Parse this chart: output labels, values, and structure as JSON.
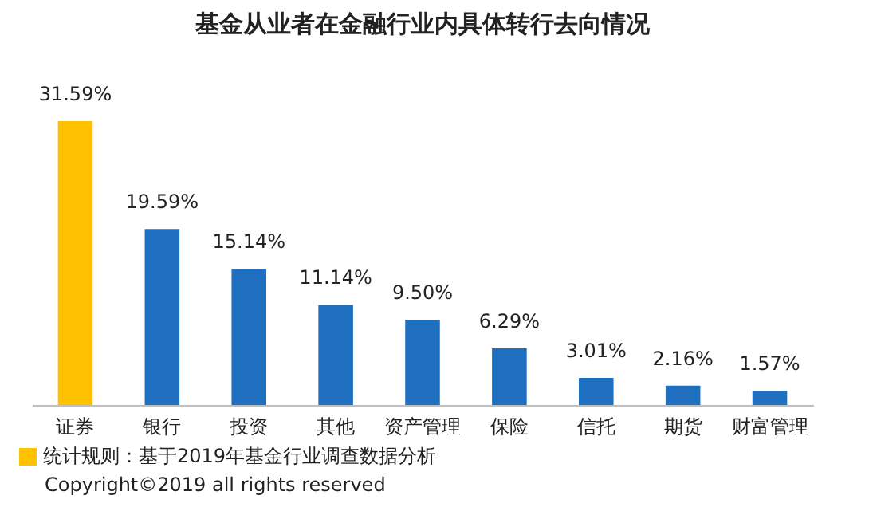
{
  "chart_data": {
    "type": "bar",
    "title": "基金从业者在金融行业内具体转行去向情况",
    "categories": [
      "证券",
      "银行",
      "投资",
      "其他",
      "资产管理",
      "保险",
      "信托",
      "期货",
      "财富管理"
    ],
    "values": [
      31.59,
      19.59,
      15.14,
      11.14,
      9.5,
      6.29,
      3.01,
      2.16,
      1.57
    ],
    "value_labels": [
      "31.59%",
      "19.59%",
      "15.14%",
      "11.14%",
      "9.50%",
      "6.29%",
      "3.01%",
      "2.16%",
      "1.57%"
    ],
    "colors": [
      "#ffc000",
      "#1f6fc0",
      "#1f6fc0",
      "#1f6fc0",
      "#1f6fc0",
      "#1f6fc0",
      "#1f6fc0",
      "#1f6fc0",
      "#1f6fc0"
    ],
    "tick_labels": "x",
    "annotations": [
      "统计规则：基于2019年基金行业调查数据分析",
      "Copyright©2019 all rights reserved"
    ]
  }
}
